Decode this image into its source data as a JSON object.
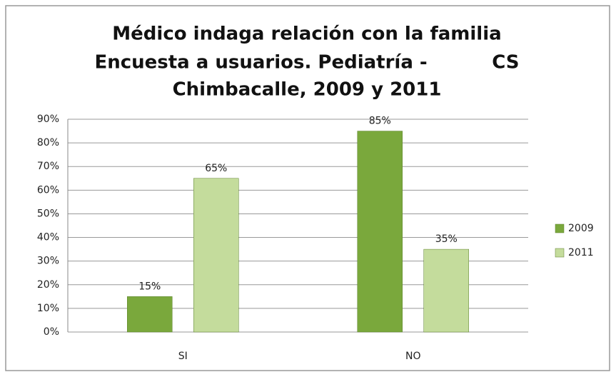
{
  "chart_data": {
    "type": "bar",
    "title": [
      "Médico indaga relación con la familia",
      "Encuesta a usuarios. Pediatría -          CS",
      "Chimbacalle, 2009 y 2011"
    ],
    "categories": [
      "SI",
      "NO"
    ],
    "series": [
      {
        "name": "2009",
        "color": "#7aa83c",
        "values": [
          15,
          85
        ],
        "value_labels": [
          "15%",
          "85%"
        ]
      },
      {
        "name": "2011",
        "color": "#c4dc9c",
        "values": [
          65,
          35
        ],
        "value_labels": [
          "65%",
          "35%"
        ]
      }
    ],
    "ylim": [
      0,
      90
    ],
    "yticks": [
      {
        "value": 0,
        "label": "0%"
      },
      {
        "value": 10,
        "label": "10%"
      },
      {
        "value": 20,
        "label": "20%"
      },
      {
        "value": 30,
        "label": "30%"
      },
      {
        "value": 40,
        "label": "40%"
      },
      {
        "value": 50,
        "label": "50%"
      },
      {
        "value": 60,
        "label": "60%"
      },
      {
        "value": 70,
        "label": "70%"
      },
      {
        "value": 80,
        "label": "80%"
      },
      {
        "value": 90,
        "label": "90%"
      }
    ],
    "grid": true,
    "legend": "right"
  }
}
